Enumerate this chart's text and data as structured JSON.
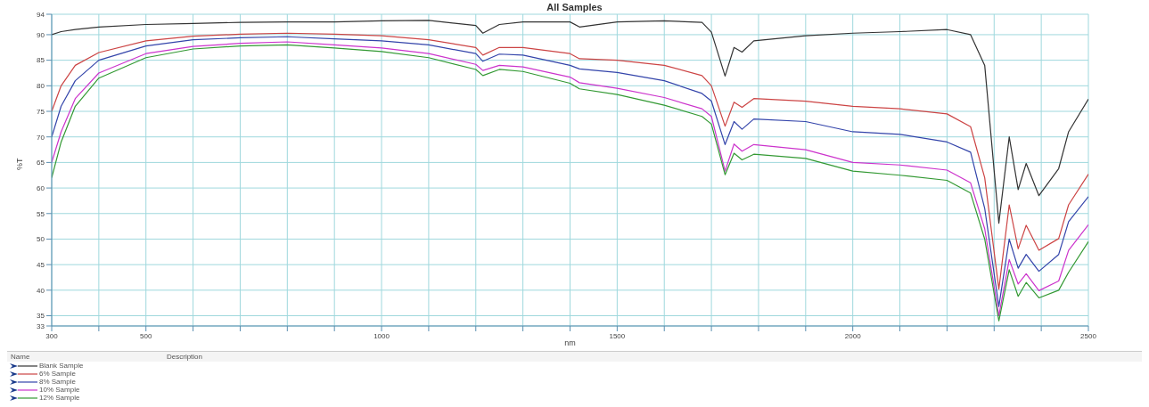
{
  "chart_data": {
    "type": "line",
    "title": "All Samples",
    "xlabel": "nm",
    "ylabel": "%T",
    "legend_title": "Name",
    "annotations": [
      "Description"
    ],
    "x": [
      300,
      320,
      350,
      400,
      500,
      600,
      700,
      800,
      900,
      1000,
      1100,
      1200,
      1215,
      1250,
      1300,
      1400,
      1420,
      1500,
      1600,
      1680,
      1700,
      1729,
      1748,
      1765,
      1790,
      1900,
      2000,
      2100,
      2200,
      2250,
      2280,
      2310,
      2332,
      2351,
      2368,
      2395,
      2437,
      2458,
      2500
    ],
    "series": [
      {
        "name": "Blank Sample",
        "color": "#333333",
        "values": [
          90,
          90.6,
          91,
          91.5,
          92,
          92.2,
          92.4,
          92.5,
          92.5,
          92.7,
          92.8,
          91.8,
          90.3,
          92,
          92.5,
          92.5,
          91.5,
          92.5,
          92.7,
          92.4,
          90.5,
          81.9,
          87.5,
          86.6,
          88.8,
          89.8,
          90.3,
          90.6,
          91,
          90,
          84,
          53.1,
          70,
          59.7,
          64.8,
          58.5,
          63.8,
          71,
          77.4
        ]
      },
      {
        "name": "6% Sample",
        "color": "#cc4444",
        "values": [
          75,
          80,
          84,
          86.5,
          88.8,
          89.7,
          90.1,
          90.3,
          90.1,
          89.8,
          89,
          87.5,
          86,
          87.5,
          87.5,
          86.3,
          85.3,
          85,
          84,
          82,
          80,
          72.1,
          76.8,
          75.8,
          77.5,
          77,
          76,
          75.5,
          74.5,
          72,
          62,
          40.2,
          56.7,
          48.1,
          52.7,
          47.8,
          50.1,
          56.7,
          62.7
        ]
      },
      {
        "name": "8% Sample",
        "color": "#3344aa",
        "values": [
          70,
          76,
          81,
          85,
          87.8,
          89,
          89.4,
          89.6,
          89.2,
          88.8,
          88,
          86.3,
          84.8,
          86.2,
          86,
          84,
          83.3,
          82.6,
          81,
          78.5,
          77,
          68.5,
          73,
          71.5,
          73.5,
          73,
          71,
          70.5,
          69,
          67,
          56,
          36.8,
          50,
          44.3,
          47,
          43.7,
          47,
          53.4,
          58.3
        ]
      },
      {
        "name": "10% Sample",
        "color": "#cc33cc",
        "values": [
          65,
          71,
          77.5,
          82.5,
          86.3,
          87.7,
          88.3,
          88.6,
          88,
          87.4,
          86.3,
          84.2,
          83,
          84,
          83.7,
          81.7,
          80.6,
          79.5,
          77.7,
          75.5,
          74,
          63.3,
          68.6,
          67.2,
          68.5,
          67.5,
          65,
          64.5,
          63.5,
          61,
          52,
          35,
          46,
          41.2,
          43.2,
          39.9,
          41.8,
          47.8,
          52.8
        ]
      },
      {
        "name": "12% Sample",
        "color": "#339933",
        "values": [
          62,
          69,
          76,
          81.5,
          85.5,
          87.2,
          87.8,
          88,
          87.4,
          86.7,
          85.5,
          83.2,
          82,
          83.2,
          82.8,
          80.5,
          79.4,
          78.3,
          76.2,
          74,
          72.5,
          62.6,
          66.8,
          65.5,
          66.6,
          65.8,
          63.3,
          62.5,
          61.5,
          59,
          50,
          34,
          44,
          38.8,
          41.5,
          38.5,
          40,
          43.5,
          49.5
        ]
      }
    ],
    "xlim": [
      300,
      2500
    ],
    "xticks": [
      300,
      {
        "value": 400,
        "label": null
      },
      500,
      {
        "value": 600,
        "label": null
      },
      {
        "value": 700,
        "label": null
      },
      {
        "value": 800,
        "label": null
      },
      {
        "value": 900,
        "label": null
      },
      1000,
      {
        "value": 1100,
        "label": null
      },
      {
        "value": 1200,
        "label": null
      },
      {
        "value": 1300,
        "label": null
      },
      {
        "value": 1400,
        "label": null
      },
      1500,
      {
        "value": 1600,
        "label": null
      },
      {
        "value": 1700,
        "label": null
      },
      {
        "value": 1800,
        "label": null
      },
      {
        "value": 1900,
        "label": null
      },
      2000,
      {
        "value": 2100,
        "label": null
      },
      {
        "value": 2200,
        "label": null
      },
      {
        "value": 2300,
        "label": null
      },
      {
        "value": 2400,
        "label": null
      },
      2500
    ],
    "ylim": [
      33,
      94
    ],
    "yticks": [
      33,
      35,
      40,
      45,
      50,
      55,
      60,
      65,
      70,
      75,
      80,
      85,
      90,
      94
    ],
    "grid": true,
    "legend": "bottom",
    "marker": "none",
    "line_style": "solid"
  }
}
